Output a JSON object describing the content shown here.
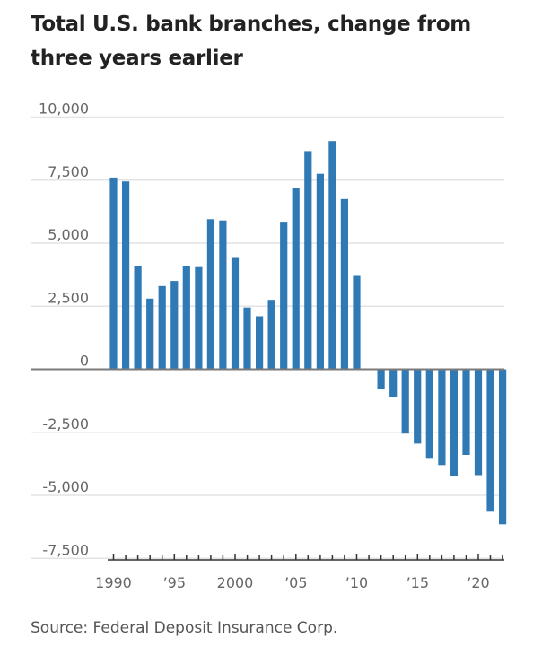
{
  "title": "Total U.S. bank branches, change from three years earlier",
  "source": "Source: Federal Deposit Insurance Corp.",
  "colors": {
    "bar": "#2f7ab5",
    "grid": "#e3e3e3",
    "zero_line": "#7a7a7a",
    "axis": "#333333",
    "text": "#666666"
  },
  "chart_data": {
    "type": "bar",
    "title": "Total U.S. bank branches, change from three years earlier",
    "xlabel": "",
    "ylabel": "",
    "ylim": [
      -7500,
      10000
    ],
    "grid": true,
    "y_ticks": [
      10000,
      7500,
      5000,
      2500,
      0,
      -2500,
      -5000,
      -7500
    ],
    "y_tick_labels": [
      "10,000",
      "7,500",
      "5,000",
      "2,500",
      "0",
      "-2,500",
      "-5,000",
      "-7,500"
    ],
    "x_ticks": [
      1990,
      1995,
      2000,
      2005,
      2010,
      2015,
      2020
    ],
    "x_tick_labels": [
      "1990",
      "’95",
      "2000",
      "’05",
      "’10",
      "’15",
      "’20"
    ],
    "categories": [
      1990,
      1991,
      1992,
      1993,
      1994,
      1995,
      1996,
      1997,
      1998,
      1999,
      2000,
      2001,
      2002,
      2003,
      2004,
      2005,
      2006,
      2007,
      2008,
      2009,
      2010,
      2011,
      2012,
      2013,
      2014,
      2015,
      2016,
      2017,
      2018,
      2019,
      2020,
      2021,
      2022
    ],
    "values": [
      7600,
      7450,
      4100,
      2800,
      3300,
      3500,
      4100,
      4050,
      5950,
      5900,
      4450,
      2450,
      2100,
      2750,
      5850,
      7200,
      8650,
      7750,
      9050,
      6750,
      3700,
      0,
      -800,
      -1100,
      -2550,
      -2950,
      -3550,
      -3800,
      -4250,
      -3400,
      -4200,
      -5650,
      -6150
    ]
  }
}
